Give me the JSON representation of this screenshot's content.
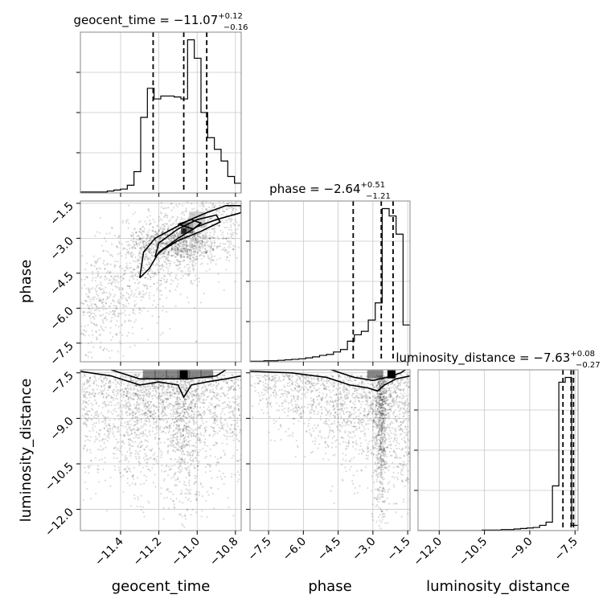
{
  "chart_data": {
    "type": "corner",
    "parameters": [
      "geocent_time",
      "phase",
      "luminosity_distance"
    ],
    "titles": [
      {
        "param": "geocent_time",
        "prefix": "geocent_time = ",
        "median": "−11.07",
        "plus": "+0.12",
        "minus": "−0.16"
      },
      {
        "param": "phase",
        "prefix": "phase = ",
        "median": "−2.64",
        "plus": "+0.51",
        "minus": "−1.21"
      },
      {
        "param": "luminosity_distance",
        "prefix": "luminosity_distance = ",
        "median": "−7.63",
        "plus": "+0.08",
        "minus": "−0.27"
      }
    ],
    "axis_labels": {
      "x": [
        "geocent_time",
        "phase",
        "luminosity_distance"
      ],
      "y": [
        "phase",
        "luminosity_distance"
      ]
    },
    "ranges": {
      "geocent_time": [
        -11.61,
        -10.77
      ],
      "phase": [
        -8.3,
        -1.4
      ],
      "luminosity_distance": [
        -12.7,
        -7.4
      ]
    },
    "ticks": {
      "geocent_time": [
        -11.4,
        -11.2,
        -11.0,
        -10.8
      ],
      "phase": [
        -7.5,
        -6.0,
        -4.5,
        -3.0,
        -1.5
      ],
      "luminosity_distance": [
        -12.0,
        -10.5,
        -9.0,
        -7.5
      ]
    },
    "tick_labels": {
      "geocent_time": [
        "−11.4",
        "−11.2",
        "−11.0",
        "−10.8"
      ],
      "phase": [
        "−7.5",
        "−6.0",
        "−4.5",
        "−3.0",
        "−1.5"
      ],
      "luminosity_distance": [
        "−12.0",
        "−10.5",
        "−9.0",
        "−7.5"
      ]
    },
    "quantiles": {
      "geocent_time": [
        -11.23,
        -11.07,
        -10.95
      ],
      "phase": [
        -3.85,
        -2.64,
        -2.13
      ],
      "luminosity_distance": [
        -7.9,
        -7.63,
        -7.55
      ]
    },
    "histograms": {
      "geocent_time": {
        "edges_min": -11.61,
        "edges_max": -10.77,
        "counts": [
          1,
          1,
          1,
          1,
          2,
          3,
          4,
          8,
          22,
          78,
          108,
          97,
          100,
          100,
          99,
          97,
          158,
          139,
          83,
          57,
          45,
          33,
          17,
          10
        ]
      },
      "phase": {
        "edges_min": -8.3,
        "edges_max": -1.4,
        "counts": [
          1,
          1,
          2,
          2,
          3,
          4,
          5,
          6,
          8,
          10,
          13,
          15,
          20,
          25,
          42,
          55,
          62,
          85,
          120,
          312,
          297,
          260,
          75
        ]
      },
      "luminosity_distance": {
        "edges_min": -12.7,
        "edges_max": -7.4,
        "counts": [
          0,
          0,
          0,
          0,
          0,
          0,
          0,
          0,
          0,
          0,
          1,
          1,
          1,
          2,
          2,
          3,
          4,
          5,
          6,
          10,
          16,
          85,
          282,
          291,
          10
        ]
      }
    },
    "grid": true
  }
}
